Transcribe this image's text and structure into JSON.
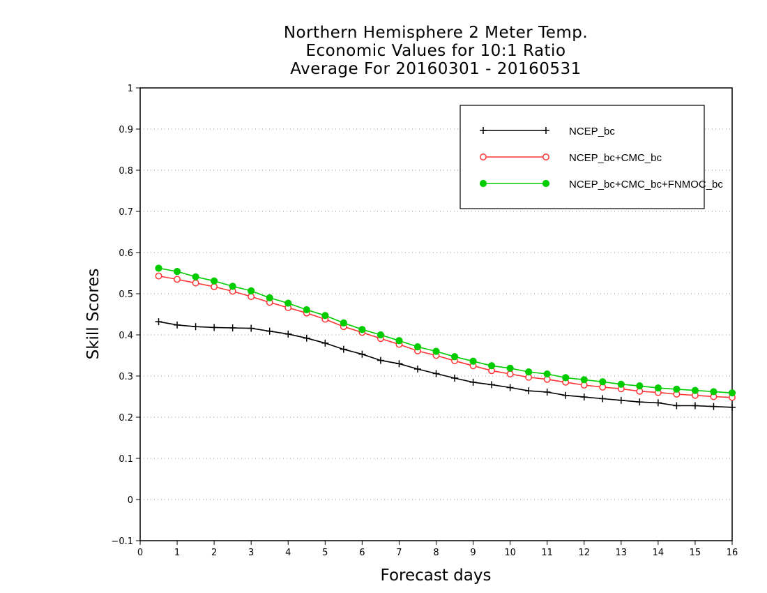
{
  "chart_data": {
    "type": "line",
    "title": [
      "Northern Hemisphere 2 Meter Temp.",
      "Economic Values for 10:1 Ratio",
      "Average For 20160301 - 20160531"
    ],
    "xlabel": "Forecast days",
    "ylabel": "Skill Scores",
    "xlim": [
      0,
      16
    ],
    "ylim": [
      -0.1,
      1
    ],
    "xticks": [
      "0",
      "1",
      "2",
      "3",
      "4",
      "5",
      "6",
      "7",
      "8",
      "9",
      "10",
      "11",
      "12",
      "13",
      "14",
      "15",
      "16"
    ],
    "yticks": [
      "−0.1",
      "0",
      "0.1",
      "0.2",
      "0.3",
      "0.4",
      "0.5",
      "0.6",
      "0.7",
      "0.8",
      "0.9",
      "1"
    ],
    "grid": "horizontal dotted",
    "legend_position": "top-right",
    "x": [
      0.5,
      1,
      1.5,
      2,
      2.5,
      3,
      3.5,
      4,
      4.5,
      5,
      5.5,
      6,
      6.5,
      7,
      7.5,
      8,
      8.5,
      9,
      9.5,
      10,
      10.5,
      11,
      11.5,
      12,
      12.5,
      13,
      13.5,
      14,
      14.5,
      15,
      15.5,
      16
    ],
    "series": [
      {
        "name": "NCEP_bc",
        "color": "#000000",
        "marker": "plus",
        "values": [
          0.432,
          0.424,
          0.42,
          0.418,
          0.417,
          0.416,
          0.409,
          0.402,
          0.392,
          0.38,
          0.365,
          0.353,
          0.338,
          0.33,
          0.317,
          0.306,
          0.295,
          0.285,
          0.279,
          0.272,
          0.264,
          0.261,
          0.253,
          0.249,
          0.245,
          0.241,
          0.237,
          0.235,
          0.228,
          0.228,
          0.226,
          0.224
        ]
      },
      {
        "name": "NCEP_bc+CMC_bc",
        "color": "#ff3333",
        "marker": "open-circle",
        "values": [
          0.543,
          0.535,
          0.526,
          0.517,
          0.506,
          0.493,
          0.479,
          0.466,
          0.453,
          0.438,
          0.42,
          0.406,
          0.391,
          0.377,
          0.361,
          0.35,
          0.337,
          0.325,
          0.313,
          0.305,
          0.297,
          0.292,
          0.285,
          0.278,
          0.273,
          0.269,
          0.263,
          0.26,
          0.256,
          0.253,
          0.25,
          0.248
        ]
      },
      {
        "name": "NCEP_bc+CMC_bc+FNMOC_bc",
        "color": "#00cc00",
        "marker": "filled-circle",
        "values": [
          0.562,
          0.554,
          0.541,
          0.531,
          0.518,
          0.507,
          0.49,
          0.477,
          0.461,
          0.447,
          0.429,
          0.413,
          0.4,
          0.386,
          0.371,
          0.36,
          0.347,
          0.336,
          0.325,
          0.319,
          0.31,
          0.305,
          0.296,
          0.291,
          0.286,
          0.28,
          0.276,
          0.271,
          0.268,
          0.265,
          0.262,
          0.259
        ]
      }
    ]
  }
}
